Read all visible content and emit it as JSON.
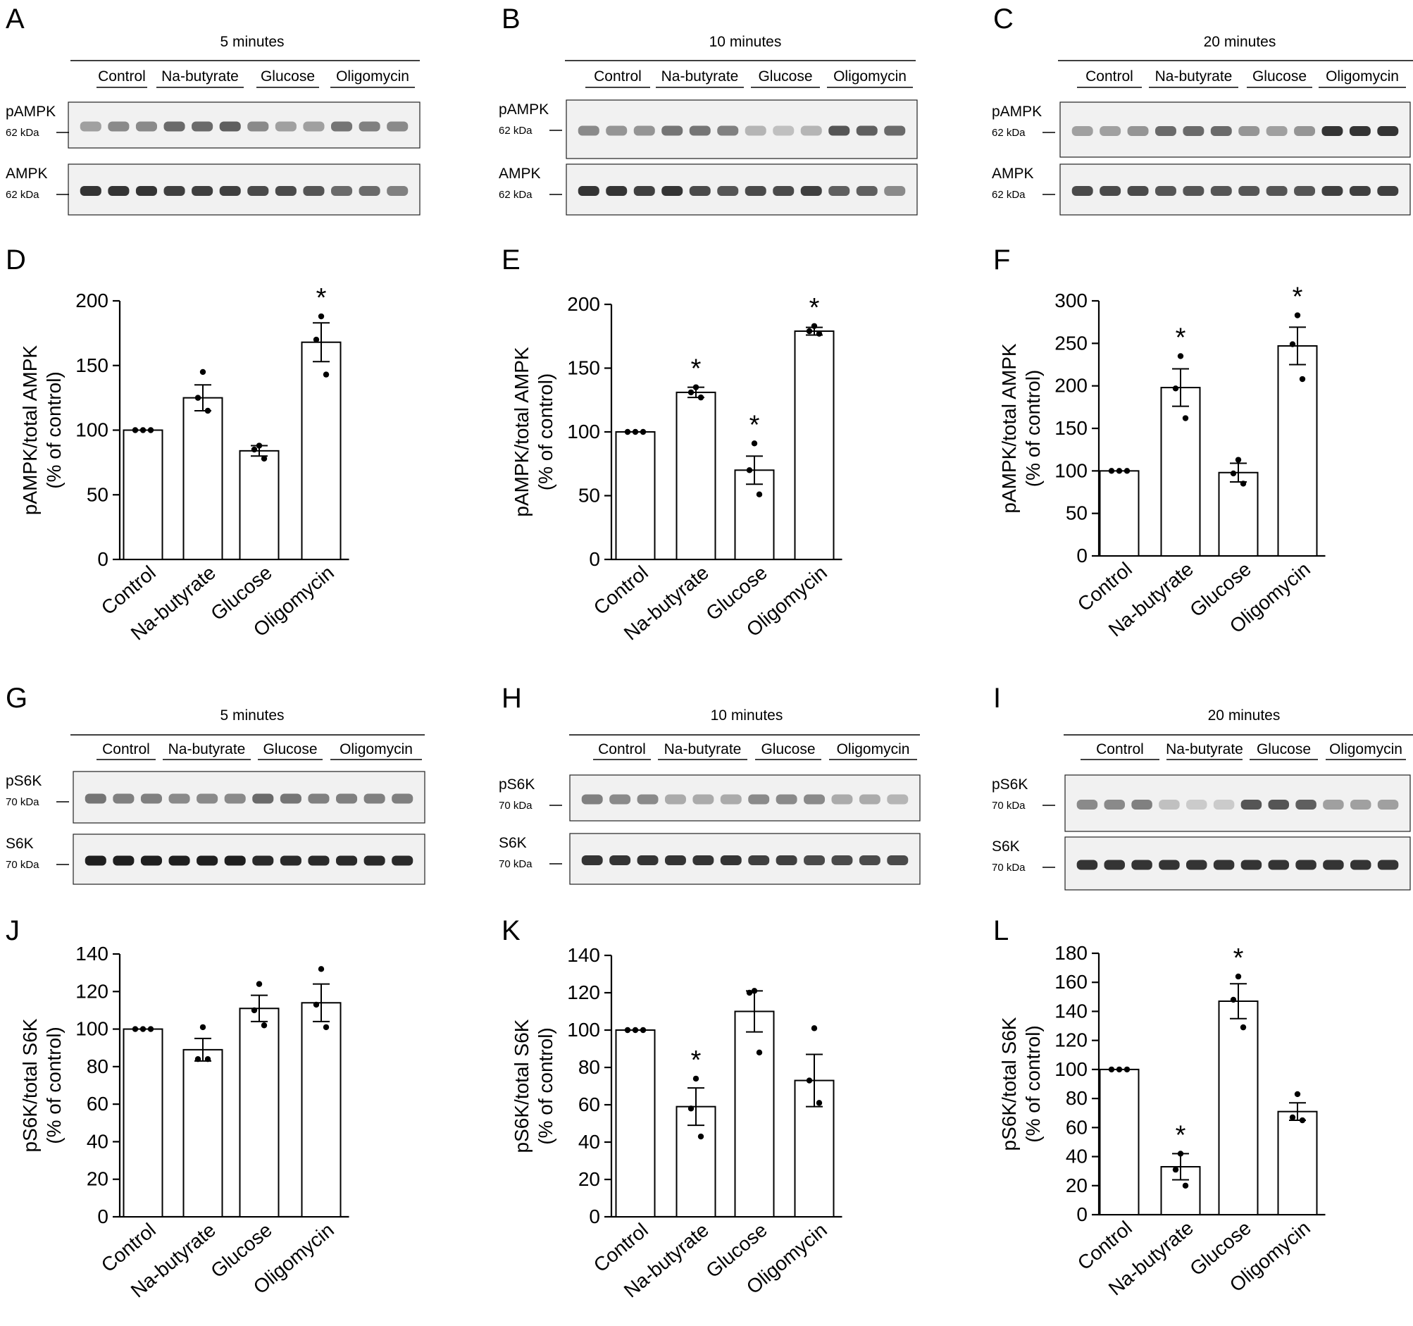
{
  "panel_letters": [
    "A",
    "B",
    "C",
    "D",
    "E",
    "F",
    "G",
    "H",
    "I",
    "J",
    "K",
    "L"
  ],
  "blots": [
    {
      "letter": "A",
      "timepoint": "5 minutes",
      "groups": [
        "Control",
        "Na-butyrate",
        "Glucose",
        "Oligomycin"
      ],
      "rows": [
        {
          "label": "pAMPK",
          "size": "62 kDa",
          "intensities": [
            0.35,
            0.45,
            0.45,
            0.6,
            0.6,
            0.65,
            0.45,
            0.35,
            0.35,
            0.55,
            0.5,
            0.45
          ]
        },
        {
          "label": "AMPK",
          "size": "62 kDa",
          "intensities": [
            0.85,
            0.85,
            0.85,
            0.8,
            0.8,
            0.8,
            0.75,
            0.75,
            0.7,
            0.6,
            0.6,
            0.5
          ]
        }
      ]
    },
    {
      "letter": "B",
      "timepoint": "10 minutes",
      "groups": [
        "Control",
        "Na-butyrate",
        "Glucose",
        "Oligomycin"
      ],
      "rows": [
        {
          "label": "pAMPK",
          "size": "62 kDa",
          "intensities": [
            0.45,
            0.4,
            0.4,
            0.55,
            0.55,
            0.5,
            0.25,
            0.2,
            0.25,
            0.7,
            0.65,
            0.6
          ]
        },
        {
          "label": "AMPK",
          "size": "62 kDa",
          "intensities": [
            0.85,
            0.85,
            0.8,
            0.85,
            0.75,
            0.7,
            0.75,
            0.75,
            0.8,
            0.65,
            0.65,
            0.45
          ]
        }
      ]
    },
    {
      "letter": "C",
      "timepoint": "20 minutes",
      "groups": [
        "Control",
        "Na-butyrate",
        "Glucose",
        "Oligomycin"
      ],
      "rows": [
        {
          "label": "pAMPK",
          "size": "62 kDa",
          "intensities": [
            0.35,
            0.35,
            0.4,
            0.6,
            0.6,
            0.6,
            0.4,
            0.35,
            0.4,
            0.85,
            0.85,
            0.85
          ]
        },
        {
          "label": "AMPK",
          "size": "62 kDa",
          "intensities": [
            0.75,
            0.75,
            0.75,
            0.7,
            0.7,
            0.7,
            0.7,
            0.7,
            0.7,
            0.8,
            0.8,
            0.8
          ]
        }
      ]
    },
    {
      "letter": "G",
      "timepoint": "5 minutes",
      "groups": [
        "Control",
        "Na-butyrate",
        "Glucose",
        "Oligomycin"
      ],
      "rows": [
        {
          "label": "pS6K",
          "size": "70 kDa",
          "intensities": [
            0.55,
            0.5,
            0.5,
            0.45,
            0.45,
            0.45,
            0.6,
            0.55,
            0.5,
            0.5,
            0.5,
            0.5
          ]
        },
        {
          "label": "S6K",
          "size": "70 kDa",
          "intensities": [
            0.95,
            0.95,
            0.95,
            0.95,
            0.95,
            0.95,
            0.9,
            0.9,
            0.9,
            0.9,
            0.9,
            0.9
          ]
        }
      ]
    },
    {
      "letter": "H",
      "timepoint": "10 minutes",
      "groups": [
        "Control",
        "Na-butyrate",
        "Glucose",
        "Oligomycin"
      ],
      "rows": [
        {
          "label": "pS6K",
          "size": "70 kDa",
          "intensities": [
            0.5,
            0.45,
            0.45,
            0.3,
            0.3,
            0.3,
            0.45,
            0.45,
            0.45,
            0.3,
            0.3,
            0.25
          ]
        },
        {
          "label": "S6K",
          "size": "70 kDa",
          "intensities": [
            0.85,
            0.85,
            0.85,
            0.85,
            0.85,
            0.85,
            0.8,
            0.8,
            0.75,
            0.75,
            0.75,
            0.75
          ]
        }
      ]
    },
    {
      "letter": "I",
      "timepoint": "20 minutes",
      "groups": [
        "Control",
        "Na-butyrate",
        "Glucose",
        "Oligomycin"
      ],
      "rows": [
        {
          "label": "pS6K",
          "size": "70 kDa",
          "intensities": [
            0.45,
            0.45,
            0.5,
            0.2,
            0.15,
            0.15,
            0.7,
            0.7,
            0.65,
            0.35,
            0.35,
            0.35
          ]
        },
        {
          "label": "S6K",
          "size": "70 kDa",
          "intensities": [
            0.85,
            0.85,
            0.85,
            0.85,
            0.85,
            0.85,
            0.85,
            0.85,
            0.85,
            0.85,
            0.85,
            0.85
          ]
        }
      ]
    }
  ],
  "chart_data": [
    {
      "letter": "D",
      "type": "bar",
      "categories": [
        "Control",
        "Na-butyrate",
        "Glucose",
        "Oligomycin"
      ],
      "values": [
        100,
        125,
        84,
        168
      ],
      "errors": [
        0,
        10,
        4,
        15
      ],
      "points": [
        [
          100,
          100,
          100
        ],
        [
          145,
          125,
          115
        ],
        [
          88,
          85,
          78
        ],
        [
          188,
          170,
          143
        ]
      ],
      "significant": [
        false,
        false,
        false,
        true
      ],
      "ylabel": "pAMPK/total AMPK",
      "ylabel2": "(% of control)",
      "ylim": [
        0,
        200
      ],
      "yticks": [
        0,
        50,
        100,
        150,
        200
      ]
    },
    {
      "letter": "E",
      "type": "bar",
      "categories": [
        "Control",
        "Na-butyrate",
        "Glucose",
        "Oligomycin"
      ],
      "values": [
        100,
        131,
        70,
        179
      ],
      "errors": [
        0,
        4,
        11,
        3
      ],
      "points": [
        [
          100,
          100,
          100
        ],
        [
          135,
          131,
          127
        ],
        [
          91,
          70,
          51
        ],
        [
          183,
          179,
          177
        ]
      ],
      "significant": [
        false,
        true,
        true,
        true
      ],
      "ylabel": "pAMPK/total AMPK",
      "ylabel2": "(% of control)",
      "ylim": [
        0,
        200
      ],
      "yticks": [
        0,
        50,
        100,
        150,
        200
      ]
    },
    {
      "letter": "F",
      "type": "bar",
      "categories": [
        "Control",
        "Na-butyrate",
        "Glucose",
        "Oligomycin"
      ],
      "values": [
        100,
        198,
        98,
        247
      ],
      "errors": [
        0,
        22,
        11,
        22
      ],
      "points": [
        [
          100,
          100,
          100
        ],
        [
          235,
          197,
          162
        ],
        [
          113,
          97,
          85
        ],
        [
          283,
          249,
          208
        ]
      ],
      "significant": [
        false,
        true,
        false,
        true
      ],
      "ylabel": "pAMPK/total AMPK",
      "ylabel2": "(% of control)",
      "ylim": [
        0,
        300
      ],
      "yticks": [
        0,
        50,
        100,
        150,
        200,
        250,
        300
      ]
    },
    {
      "letter": "J",
      "type": "bar",
      "categories": [
        "Control",
        "Na-butyrate",
        "Glucose",
        "Oligomycin"
      ],
      "values": [
        100,
        89,
        111,
        114
      ],
      "errors": [
        0,
        6,
        7,
        10
      ],
      "points": [
        [
          100,
          100,
          100
        ],
        [
          101,
          84,
          84
        ],
        [
          124,
          110,
          102
        ],
        [
          132,
          113,
          101
        ]
      ],
      "significant": [
        false,
        false,
        false,
        false
      ],
      "ylabel": "pS6K/total S6K",
      "ylabel2": "(% of control)",
      "ylim": [
        0,
        140
      ],
      "yticks": [
        0,
        20,
        40,
        60,
        80,
        100,
        120,
        140
      ]
    },
    {
      "letter": "K",
      "type": "bar",
      "categories": [
        "Control",
        "Na-butyrate",
        "Glucose",
        "Oligomycin"
      ],
      "values": [
        100,
        59,
        110,
        73
      ],
      "errors": [
        0,
        10,
        11,
        14
      ],
      "points": [
        [
          100,
          100,
          100
        ],
        [
          74,
          58,
          43
        ],
        [
          121,
          120,
          88
        ],
        [
          101,
          73,
          61
        ]
      ],
      "significant": [
        false,
        true,
        false,
        false
      ],
      "ylabel": "pS6K/total S6K",
      "ylabel2": "(% of control)",
      "ylim": [
        0,
        140
      ],
      "yticks": [
        0,
        20,
        40,
        60,
        80,
        100,
        120,
        140
      ]
    },
    {
      "letter": "L",
      "type": "bar",
      "categories": [
        "Control",
        "Na-butyrate",
        "Glucose",
        "Oligomycin"
      ],
      "values": [
        100,
        33,
        147,
        71
      ],
      "errors": [
        0,
        9,
        12,
        6
      ],
      "points": [
        [
          100,
          100,
          100
        ],
        [
          42,
          31,
          20
        ],
        [
          164,
          148,
          129
        ],
        [
          83,
          67,
          65
        ]
      ],
      "significant": [
        false,
        true,
        true,
        false
      ],
      "ylabel": "pS6K/total S6K",
      "ylabel2": "(% of control)",
      "ylim": [
        0,
        180
      ],
      "yticks": [
        0,
        20,
        40,
        60,
        80,
        100,
        120,
        140,
        160,
        180
      ]
    }
  ],
  "significance_mark": "*"
}
